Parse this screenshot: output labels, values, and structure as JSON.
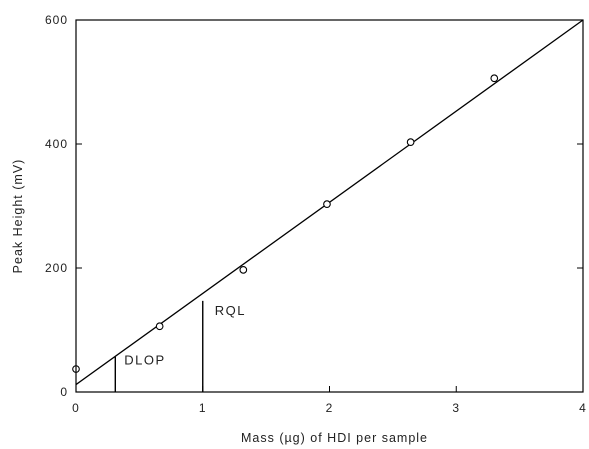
{
  "chart_data": {
    "type": "scatter",
    "title": "",
    "xlabel": "Mass (µg) of HDI per sample",
    "ylabel": "Peak Height (mV)",
    "xlim": [
      0,
      4
    ],
    "ylim": [
      0,
      600
    ],
    "x_ticks": [
      0,
      1,
      2,
      3,
      4
    ],
    "y_ticks": [
      0,
      200,
      400,
      600
    ],
    "x_tick_labels": [
      "0",
      "1",
      "2",
      "3",
      "4"
    ],
    "y_tick_labels": [
      "0",
      "200",
      "400",
      "600"
    ],
    "grid": false,
    "legend": "none",
    "series": [
      {
        "type": "scatter",
        "marker": "open-circle",
        "x": [
          0.0,
          0.66,
          1.32,
          1.98,
          2.64,
          3.3
        ],
        "y": [
          37,
          106,
          197,
          303,
          403,
          506
        ]
      }
    ],
    "fit_line": {
      "x": [
        0,
        4
      ],
      "y": [
        12,
        600
      ]
    },
    "annotations": [
      {
        "text": "DLOP",
        "x": 0.31,
        "y_top": 57
      },
      {
        "text": "RQL",
        "x": 1.0,
        "y_top": 147
      }
    ]
  }
}
